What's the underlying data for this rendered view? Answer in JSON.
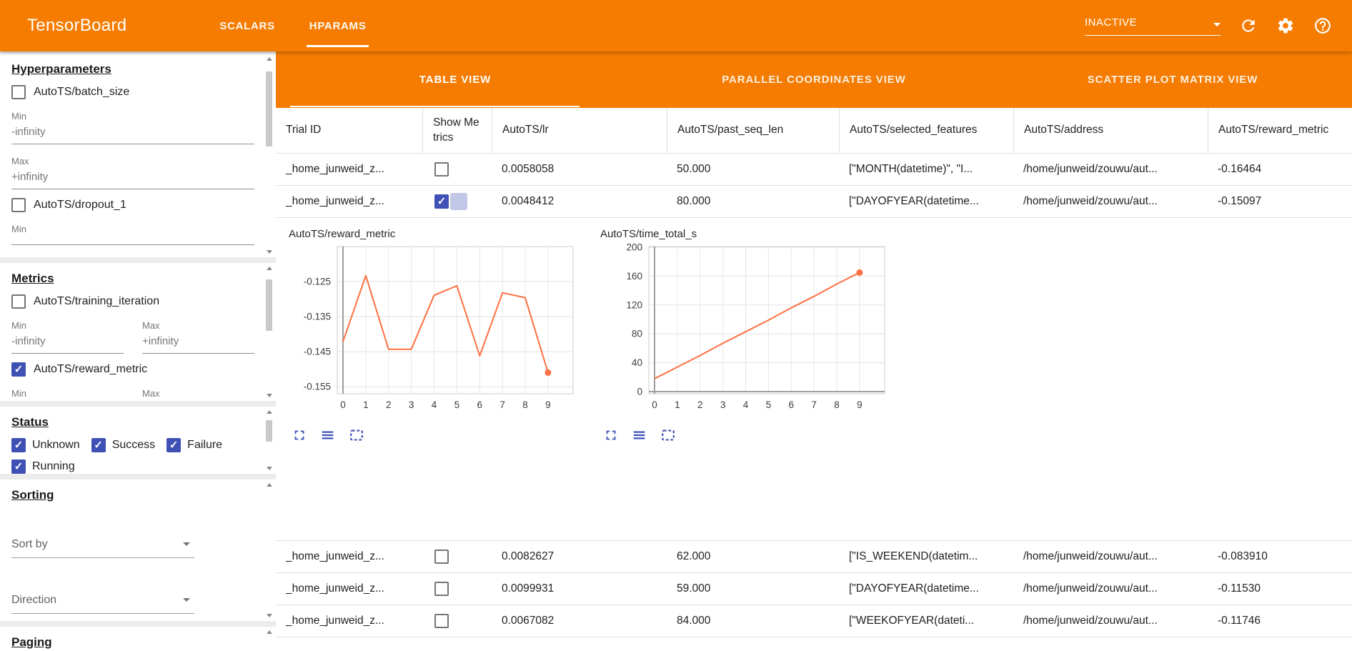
{
  "colors": {
    "primary": "#f57c00",
    "checkbox": "#3f51b5",
    "chart_line": "#ff7043",
    "tool_icon": "#3f51b5"
  },
  "icons": {
    "header": [
      "chevron-down",
      "refresh",
      "gear",
      "help-circle"
    ],
    "chart_toolbar": [
      "fullscreen",
      "list-lines",
      "dashed-box"
    ]
  },
  "header": {
    "title": "TensorBoard",
    "nav_tabs": [
      {
        "label": "SCALARS",
        "active": false
      },
      {
        "label": "HPARAMS",
        "active": true
      }
    ],
    "status_select_value": "INACTIVE"
  },
  "sidebar": {
    "hyperparameters": {
      "title": "Hyperparameters",
      "items": [
        {
          "label": "AutoTS/batch_size",
          "checked": false,
          "min_label": "Min",
          "min_value": "-infinity",
          "max_label": "Max",
          "max_value": "+infinity"
        },
        {
          "label": "AutoTS/dropout_1",
          "checked": false,
          "min_label": "Min",
          "min_value": ""
        }
      ]
    },
    "metrics": {
      "title": "Metrics",
      "items": [
        {
          "label": "AutoTS/training_iteration",
          "checked": false,
          "min_label": "Min",
          "min_value": "-infinity",
          "max_label": "Max",
          "max_value": "+infinity"
        },
        {
          "label": "AutoTS/reward_metric",
          "checked": true,
          "min_label": "Min",
          "min_value": "",
          "max_label": "Max",
          "max_value": ""
        }
      ]
    },
    "status": {
      "title": "Status",
      "items": [
        {
          "label": "Unknown",
          "checked": true
        },
        {
          "label": "Success",
          "checked": true
        },
        {
          "label": "Failure",
          "checked": true
        },
        {
          "label": "Running",
          "checked": true
        }
      ]
    },
    "sorting": {
      "title": "Sorting",
      "sort_by_placeholder": "Sort by",
      "direction_placeholder": "Direction"
    },
    "paging": {
      "title": "Paging"
    }
  },
  "main": {
    "view_tabs": [
      {
        "label": "TABLE VIEW",
        "active": true
      },
      {
        "label": "PARALLEL COORDINATES VIEW",
        "active": false
      },
      {
        "label": "SCATTER PLOT MATRIX VIEW",
        "active": false
      }
    ],
    "table": {
      "columns": [
        "Trial ID",
        "Show Metrics",
        "AutoTS/lr",
        "AutoTS/past_seq_len",
        "AutoTS/selected_features",
        "AutoTS/address",
        "AutoTS/reward_metric"
      ],
      "rows": [
        {
          "trial_id": "_home_junweid_z...",
          "show_metrics": false,
          "lr": "0.0058058",
          "past_seq_len": "50.000",
          "selected_features": "[\"MONTH(datetime)\", \"I...",
          "address": "/home/junweid/zouwu/aut...",
          "reward_metric": "-0.16464"
        },
        {
          "trial_id": "_home_junweid_z...",
          "show_metrics": true,
          "lr": "0.0048412",
          "past_seq_len": "80.000",
          "selected_features": "[\"DAYOFYEAR(datetime...",
          "address": "/home/junweid/zouwu/aut...",
          "reward_metric": "-0.15097"
        },
        {
          "trial_id": "_home_junweid_z...",
          "show_metrics": false,
          "lr": "0.0082627",
          "past_seq_len": "62.000",
          "selected_features": "[\"IS_WEEKEND(datetim...",
          "address": "/home/junweid/zouwu/aut...",
          "reward_metric": "-0.083910"
        },
        {
          "trial_id": "_home_junweid_z...",
          "show_metrics": false,
          "lr": "0.0099931",
          "past_seq_len": "59.000",
          "selected_features": "[\"DAYOFYEAR(datetime...",
          "address": "/home/junweid/zouwu/aut...",
          "reward_metric": "-0.11530"
        },
        {
          "trial_id": "_home_junweid_z...",
          "show_metrics": false,
          "lr": "0.0067082",
          "past_seq_len": "84.000",
          "selected_features": "[\"WEEKOFYEAR(dateti...",
          "address": "/home/junweid/zouwu/aut...",
          "reward_metric": "-0.11746"
        }
      ]
    }
  },
  "chart_data": [
    {
      "type": "line",
      "title": "AutoTS/reward_metric",
      "x": [
        0,
        1,
        2,
        3,
        4,
        5,
        6,
        7,
        8,
        9
      ],
      "values": [
        -0.1421,
        -0.1233,
        -0.1443,
        -0.1443,
        -0.1289,
        -0.1262,
        -0.1462,
        -0.1282,
        -0.1296,
        -0.15097
      ],
      "yticks": [
        "-0.125",
        "-0.135",
        "-0.145",
        "-0.155"
      ],
      "ylim": [
        -0.157,
        -0.115
      ],
      "xlim": [
        -0.25,
        10.1
      ],
      "axis_line_x0": true,
      "axis_line_y0": false,
      "grid": true,
      "legend": "none",
      "line_color": "#ff7043",
      "end_dot": true
    },
    {
      "type": "line",
      "title": "AutoTS/time_total_s",
      "x": [
        0,
        1,
        2,
        3,
        4,
        5,
        6,
        7,
        8,
        9
      ],
      "values": [
        18,
        34,
        50,
        67,
        83,
        99,
        116,
        132,
        149,
        165
      ],
      "yticks": [
        "200",
        "160",
        "120",
        "80",
        "40",
        "0"
      ],
      "ylim": [
        -3,
        201
      ],
      "xlim": [
        -0.25,
        10.1
      ],
      "axis_line_x0": true,
      "axis_line_y0": true,
      "grid": true,
      "legend": "none",
      "line_color": "#ff7043",
      "end_dot": true
    }
  ]
}
